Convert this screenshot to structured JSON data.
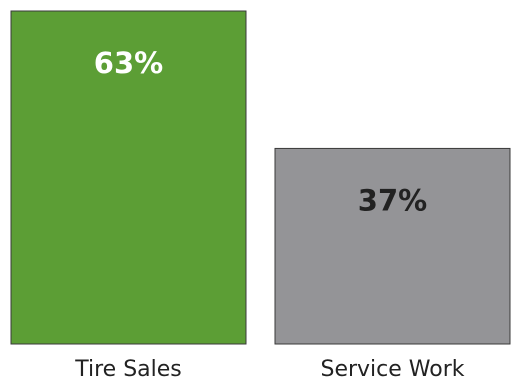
{
  "chart_data": {
    "type": "bar",
    "title": "",
    "xlabel": "",
    "ylabel": "",
    "ylim": [
      0,
      63
    ],
    "categories": [
      "Tire Sales",
      "Service Work"
    ],
    "values": [
      63,
      37
    ],
    "value_labels": [
      "63%",
      "37%"
    ],
    "colors": [
      "#5c9e35",
      "#949497"
    ],
    "label_colors": [
      "#ffffff",
      "#222222"
    ],
    "grid": false,
    "legend": "none"
  }
}
